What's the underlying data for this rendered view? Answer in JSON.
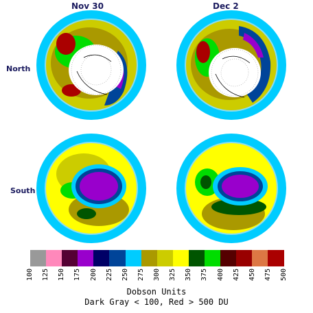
{
  "headers": {
    "left": "Nov 30",
    "right": "Dec 2"
  },
  "rows": {
    "north": "North",
    "south": "South"
  },
  "legend": {
    "colors": [
      "#999999",
      "#ff88bb",
      "#550033",
      "#9900cc",
      "#000066",
      "#004499",
      "#00ccff",
      "#aa9900",
      "#cccc00",
      "#ffff00",
      "#005500",
      "#00dd00",
      "#550000",
      "#990000",
      "#dd7744",
      "#aa0000"
    ],
    "ticks": [
      "100",
      "125",
      "150",
      "175",
      "200",
      "225",
      "250",
      "275",
      "300",
      "325",
      "350",
      "375",
      "400",
      "425",
      "450",
      "475",
      "500"
    ]
  },
  "caption": {
    "line1": "Dobson Units",
    "line2": "Dark Gray < 100, Red > 500 DU"
  }
}
